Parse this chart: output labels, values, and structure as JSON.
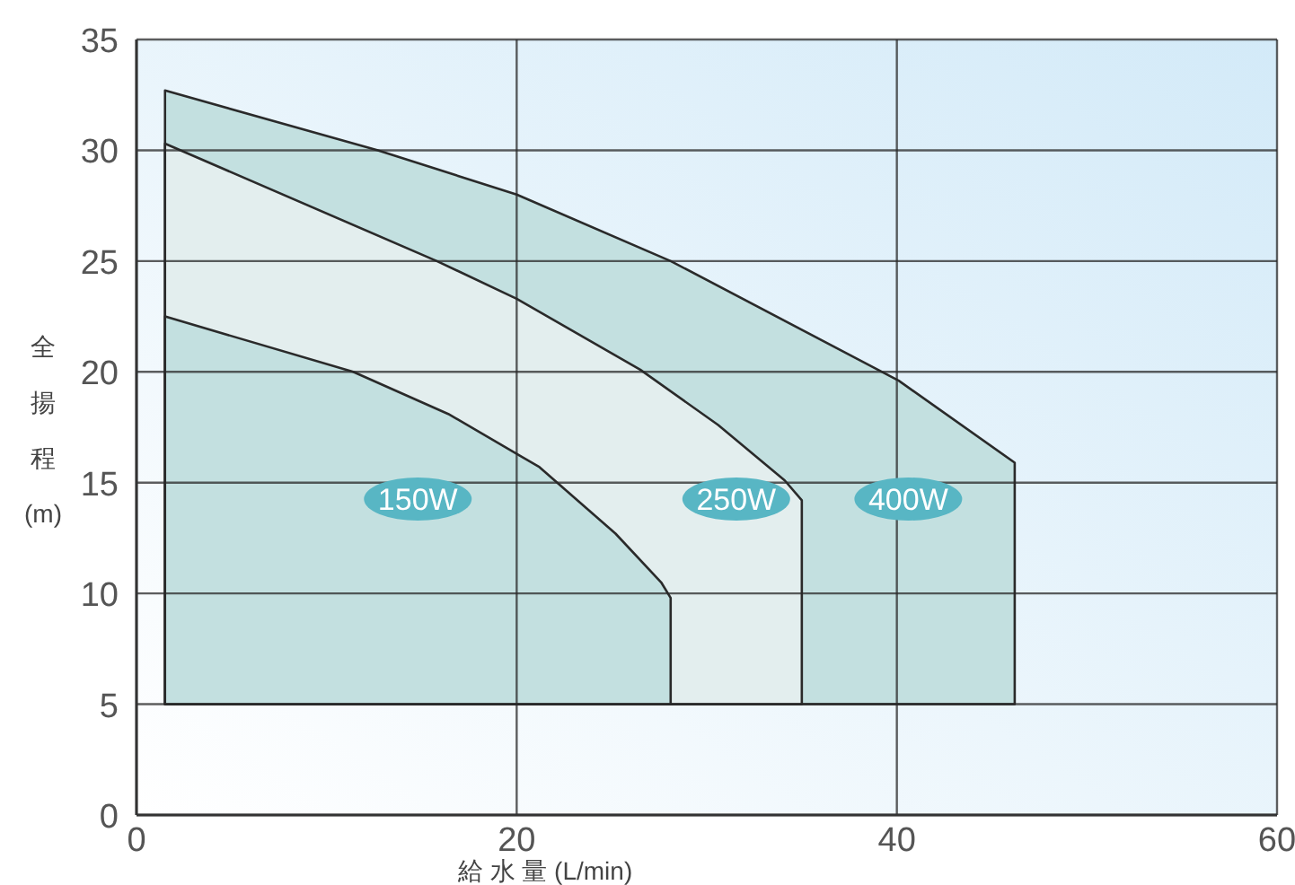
{
  "chart_data": {
    "type": "area",
    "xlabel": "給 水 量 (L/min)",
    "ylabel": "全揚程(m)",
    "xlim": [
      0,
      60
    ],
    "ylim": [
      0,
      35
    ],
    "xticks": [
      0,
      20,
      40,
      60
    ],
    "yticks": [
      0,
      5,
      10,
      15,
      20,
      25,
      30,
      35
    ],
    "grid": true,
    "series": [
      {
        "name": "400W",
        "color": "#c3e0e0",
        "x": [
          1.5,
          1.5,
          12.7,
          20,
          28.1,
          40.1,
          46.2,
          46.2
        ],
        "values": [
          5,
          32.7,
          30,
          28,
          25,
          19.6,
          15.9,
          5
        ]
      },
      {
        "name": "250W",
        "color": "#e3eeee",
        "x": [
          1.5,
          1.5,
          15.8,
          20,
          26.5,
          30.6,
          34.1,
          35,
          35
        ],
        "values": [
          5,
          30.3,
          25,
          23.3,
          20.1,
          17.6,
          15.1,
          14.2,
          5
        ]
      },
      {
        "name": "150W",
        "color": "#c3e0e0",
        "x": [
          1.5,
          1.5,
          11.4,
          16.4,
          21.2,
          25.2,
          27.6,
          28.1,
          28.1
        ],
        "values": [
          5,
          22.5,
          20,
          18.1,
          15.7,
          12.7,
          10.5,
          9.8,
          5
        ]
      }
    ]
  }
}
